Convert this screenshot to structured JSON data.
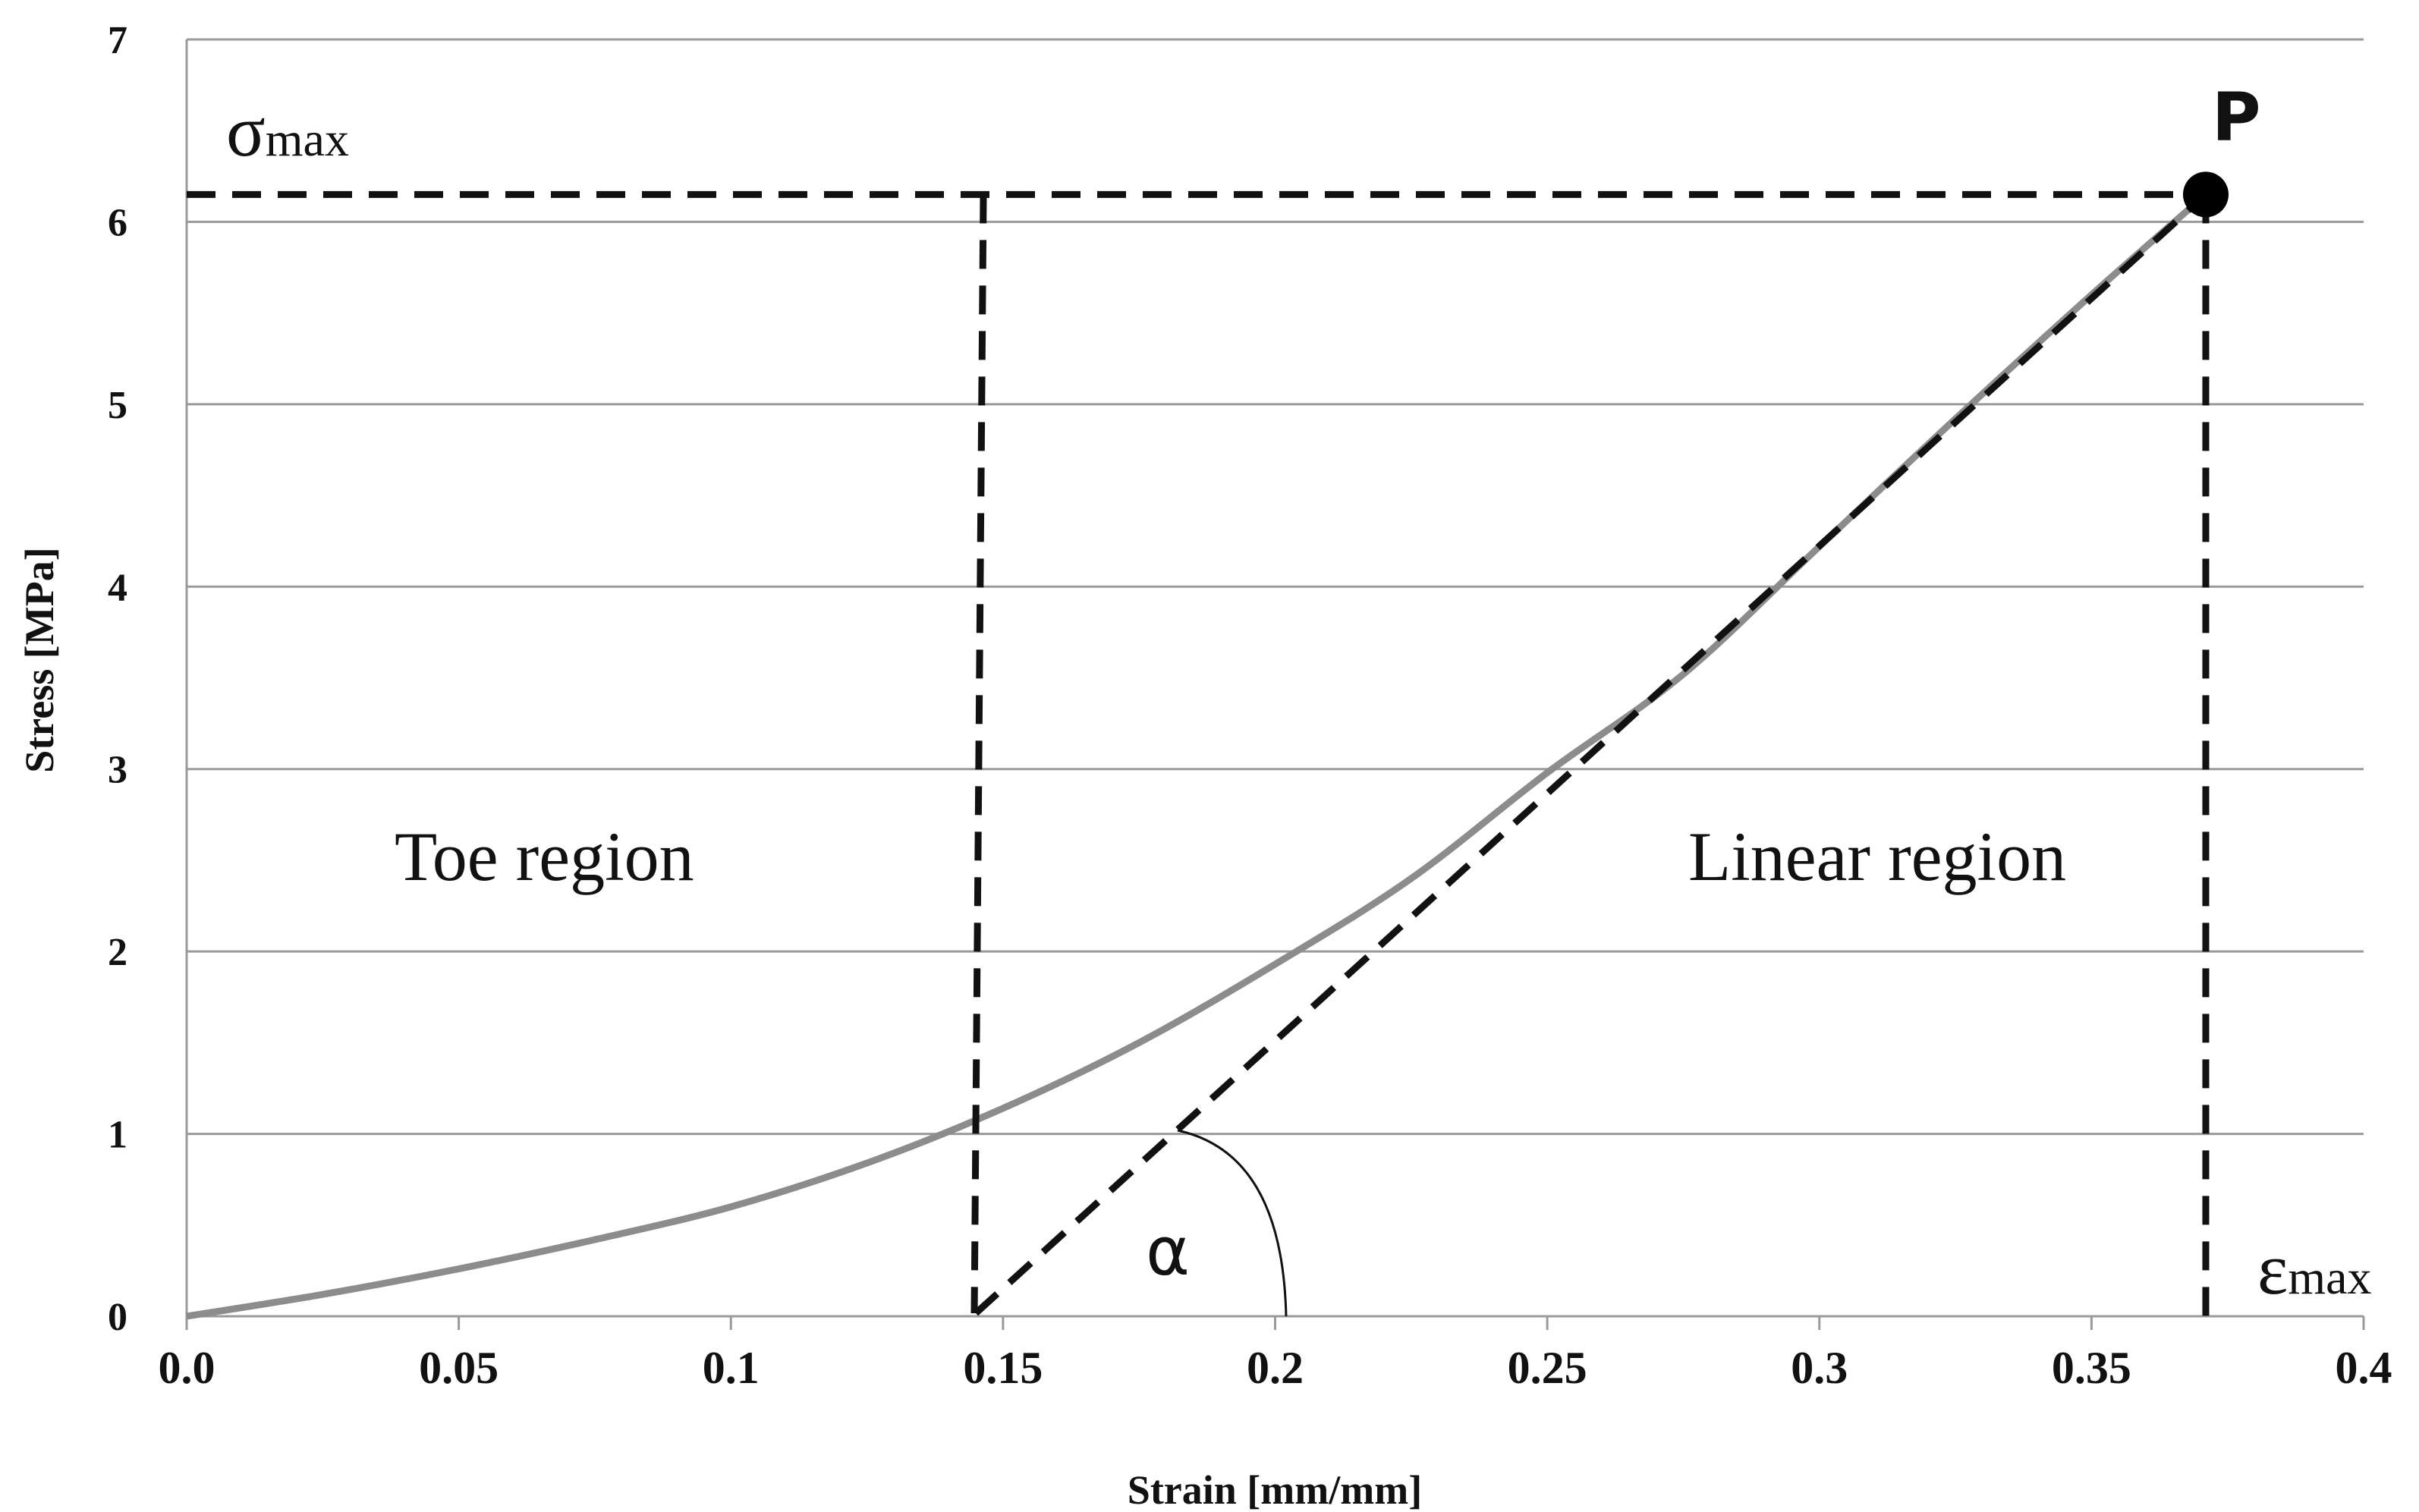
{
  "chart_data": {
    "type": "line",
    "xlabel": "Strain [mm/mm]",
    "ylabel": "Stress [MPa]",
    "xlim": [
      0,
      0.4
    ],
    "ylim": [
      0,
      7
    ],
    "x_ticks": [
      "0.0",
      "0.05",
      "0.1",
      "0.15",
      "0.2",
      "0.25",
      "0.3",
      "0.35",
      "0.4"
    ],
    "y_ticks": [
      "0",
      "1",
      "2",
      "3",
      "4",
      "5",
      "6",
      "7"
    ],
    "grid": "horizontal",
    "curve": {
      "color": "#8c8c8c",
      "x": [
        0,
        0.025,
        0.05,
        0.075,
        0.1,
        0.125,
        0.15,
        0.175,
        0.2,
        0.225,
        0.25,
        0.275,
        0.3,
        0.325,
        0.35,
        0.371
      ],
      "y": [
        0,
        0.12,
        0.26,
        0.42,
        0.6,
        0.84,
        1.14,
        1.5,
        1.93,
        2.4,
        2.98,
        3.52,
        4.22,
        4.92,
        5.6,
        6.15
      ]
    },
    "tangent_line": {
      "x": [
        0.145,
        0.371
      ],
      "y": [
        0,
        6.15
      ]
    },
    "toe_boundary": {
      "x": 0.145,
      "y_top": 6.15
    },
    "sigma_max_line": {
      "y": 6.15,
      "x": [
        0,
        0.371
      ]
    },
    "epsilon_max_line": {
      "x": 0.371,
      "y": [
        0,
        6.15
      ]
    },
    "peak_point": {
      "x": 0.371,
      "y": 6.15,
      "label": "P"
    },
    "angle_label": "α",
    "annotations": {
      "toe_region": "Toe region",
      "linear_region": "Linear region",
      "sigma_symbol": "σ",
      "sigma_sub": "max",
      "epsilon_symbol": "ε",
      "epsilon_sub": "max"
    }
  }
}
